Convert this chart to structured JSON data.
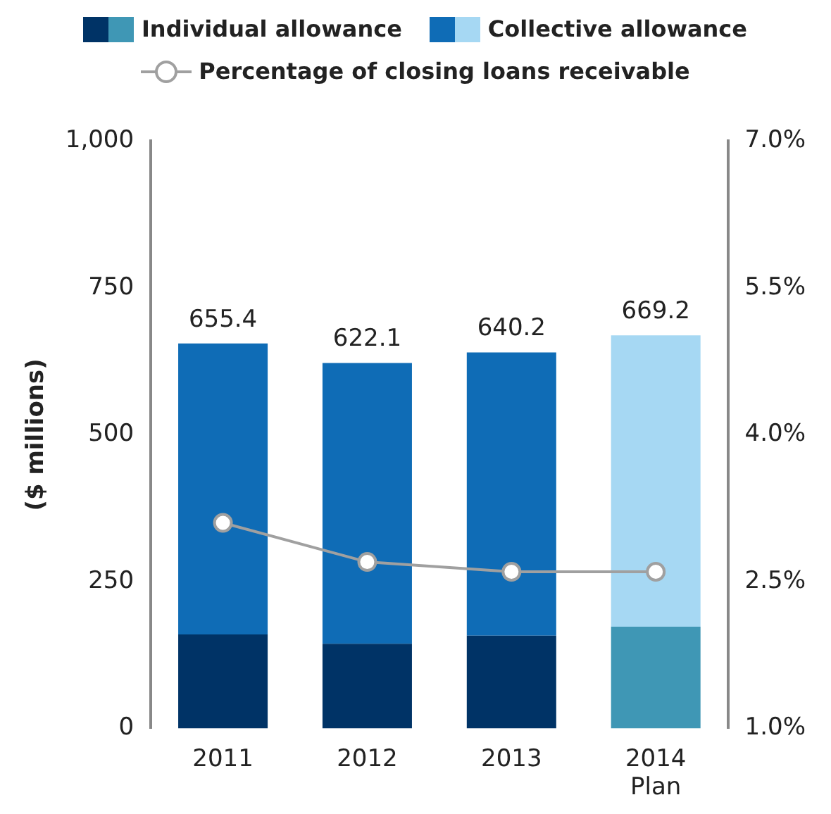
{
  "chart_data": {
    "type": "bar",
    "stacked": true,
    "categories": [
      "2011",
      "2012",
      "2013",
      "2014\nPlan"
    ],
    "series": [
      {
        "name": "Individual allowance",
        "color": "#003366",
        "colors": [
          "#003366",
          "#003366",
          "#003366",
          "#3f97b5"
        ],
        "values": [
          160,
          144,
          158,
          173
        ]
      },
      {
        "name": "Collective allowance",
        "color": "#0f6cb6",
        "colors": [
          "#0f6cb6",
          "#0f6cb6",
          "#0f6cb6",
          "#a6d8f3"
        ],
        "values": [
          495.4,
          478.1,
          482.2,
          496.2
        ]
      },
      {
        "name": "Percentage of closing loans receivable",
        "type": "line",
        "axis": "y2",
        "color": "#a0a0a0",
        "values": [
          3.1,
          2.7,
          2.6,
          2.6
        ]
      }
    ],
    "totals": [
      "655.4",
      "622.1",
      "640.2",
      "669.2"
    ],
    "ylabel": "($ millions)",
    "ylim": [
      0,
      1000
    ],
    "yticks": [
      0,
      {
        "value": 250,
        "label": "250"
      },
      {
        "value": 500,
        "label": "500"
      },
      {
        "value": 750,
        "label": "750"
      },
      {
        "value": 1000,
        "label": "1,000"
      }
    ],
    "y2lim": [
      1,
      7
    ],
    "y2ticks": [
      {
        "value": 1,
        "label": "1.0%"
      },
      {
        "value": 2.5,
        "label": "2.5%"
      },
      {
        "value": 4,
        "label": "4.0%"
      },
      {
        "value": 5.5,
        "label": "5.5%"
      },
      {
        "value": 7,
        "label": "7.0%"
      }
    ],
    "grid": false,
    "legend": "top",
    "marker": "circle",
    "line_style": "solid"
  }
}
